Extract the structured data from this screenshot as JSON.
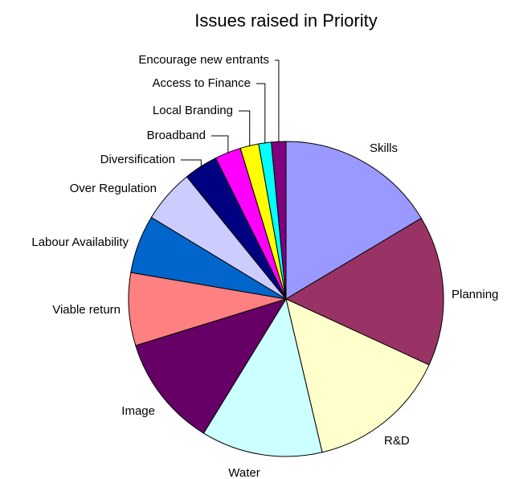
{
  "chart_data": {
    "type": "pie",
    "title": "Issues raised in Priority",
    "start_angle_deg": 0,
    "direction": "clockwise",
    "slices": [
      {
        "label": "Skills",
        "value": 16.5,
        "color": "#9999ff"
      },
      {
        "label": "Planning",
        "value": 15.5,
        "color": "#993366"
      },
      {
        "label": "R&D",
        "value": 14.5,
        "color": "#ffffcc"
      },
      {
        "label": "Water",
        "value": 12.5,
        "color": "#ccffff"
      },
      {
        "label": "Image",
        "value": 11.5,
        "color": "#660066"
      },
      {
        "label": "Viable return",
        "value": 7.5,
        "color": "#ff8080"
      },
      {
        "label": "Labour Availability",
        "value": 6.0,
        "color": "#0066cc"
      },
      {
        "label": "Over Regulation",
        "value": 5.5,
        "color": "#ccccff"
      },
      {
        "label": "Diversification",
        "value": 3.5,
        "color": "#000080"
      },
      {
        "label": "Broadband",
        "value": 2.7,
        "color": "#ff00ff"
      },
      {
        "label": "Local Branding",
        "value": 1.9,
        "color": "#ffff00"
      },
      {
        "label": "Access to Finance",
        "value": 1.3,
        "color": "#00ffff"
      },
      {
        "label": "Encourage new entrants",
        "value": 1.5,
        "color": "#800080"
      }
    ]
  }
}
